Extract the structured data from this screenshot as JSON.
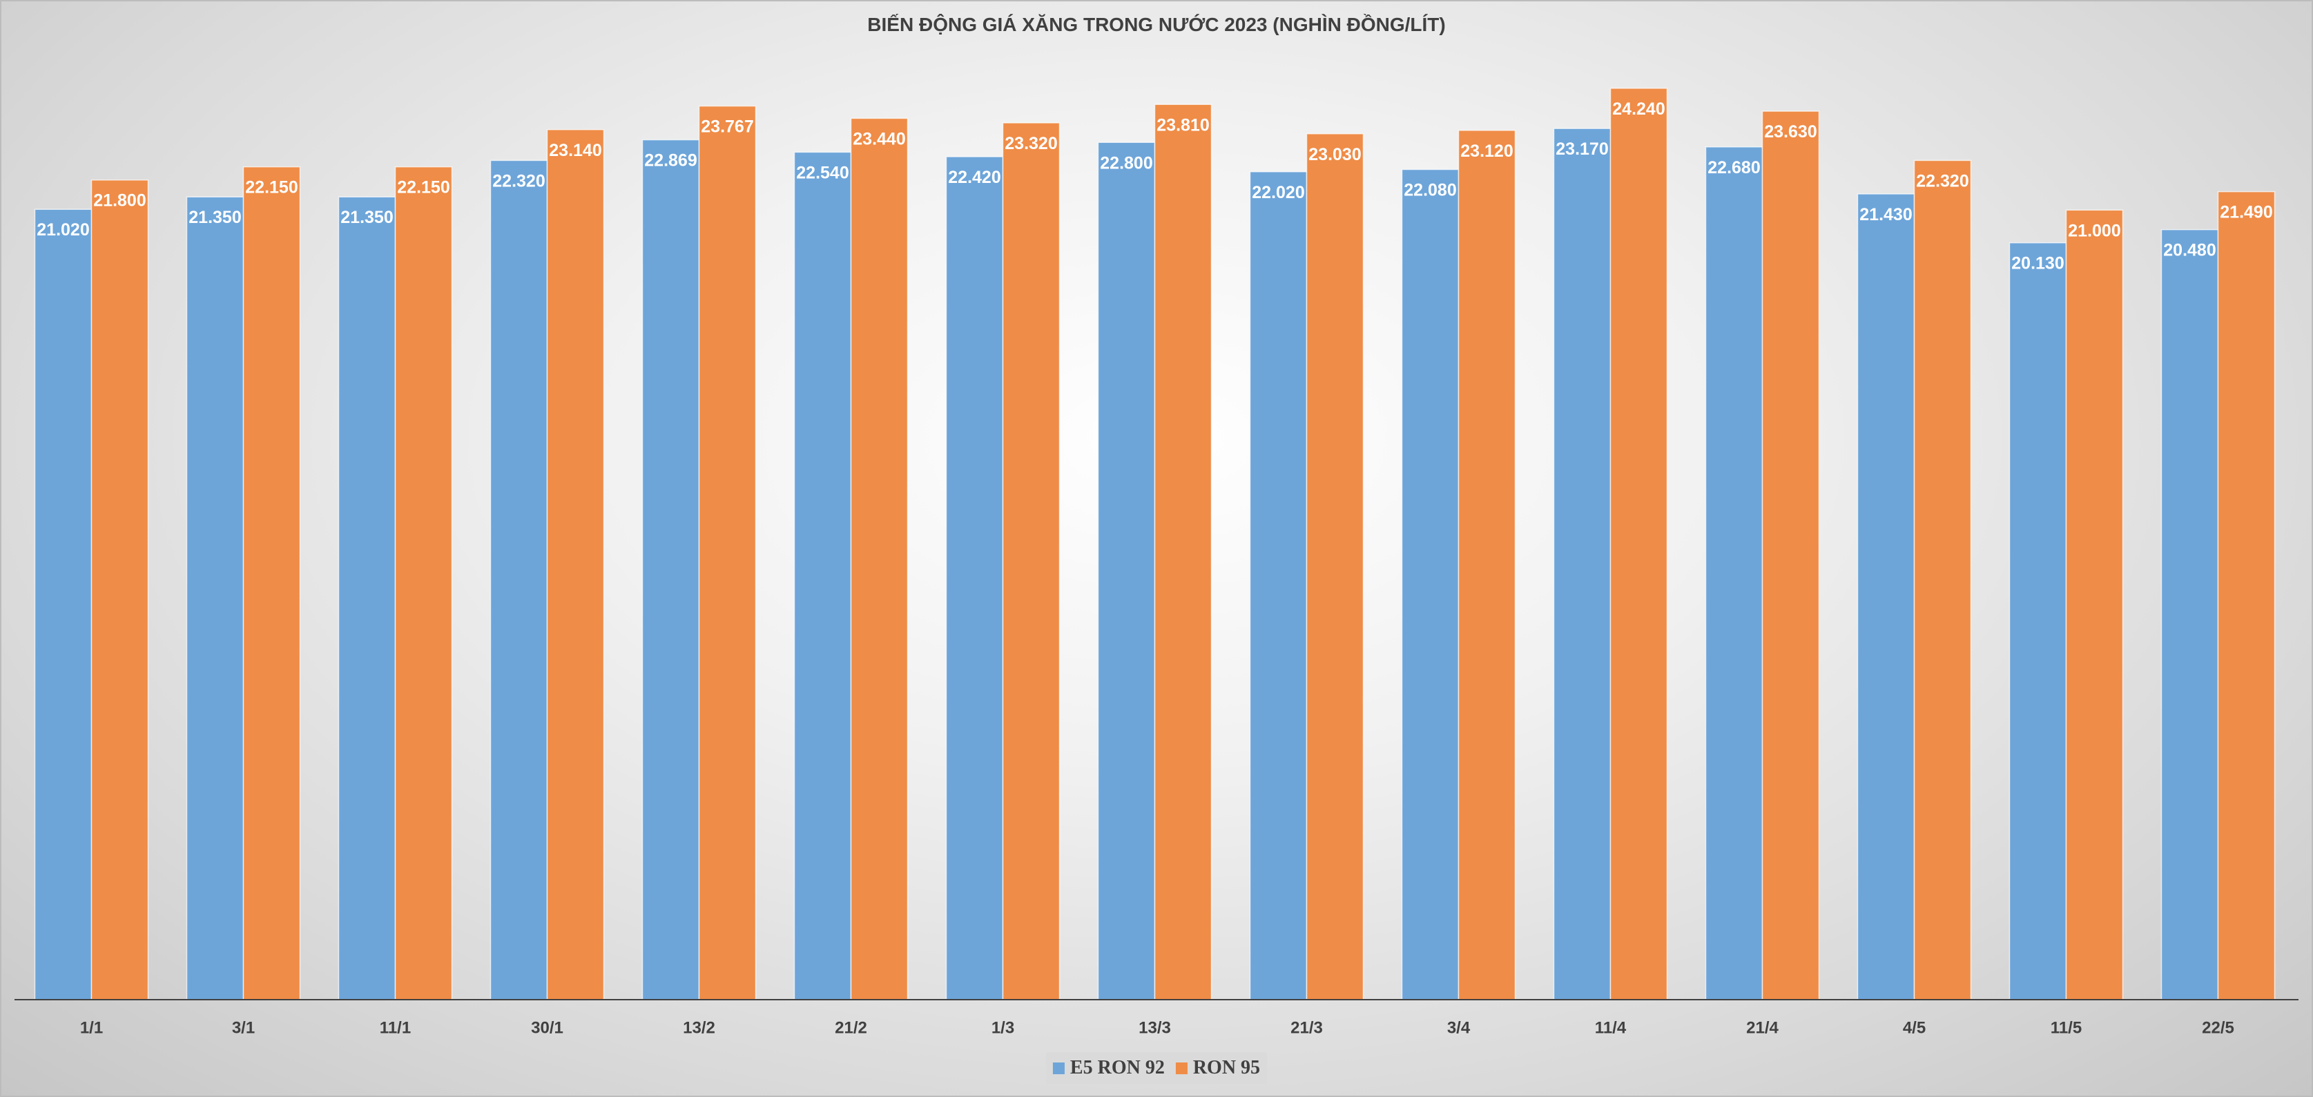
{
  "chart_data": {
    "type": "bar",
    "title": "BIẾN ĐỘNG GIÁ XĂNG TRONG NƯỚC 2023 (NGHÌN ĐỒNG/LÍT)",
    "categories": [
      "1/1",
      "3/1",
      "11/1",
      "30/1",
      "13/2",
      "21/2",
      "1/3",
      "13/3",
      "21/3",
      "3/4",
      "11/4",
      "21/4",
      "4/5",
      "11/5",
      "22/5"
    ],
    "series": [
      {
        "name": "E5 RON 92",
        "color": "#6da5d9",
        "values": [
          21.02,
          21.35,
          21.35,
          22.32,
          22.869,
          22.54,
          22.42,
          22.8,
          22.02,
          22.08,
          23.17,
          22.68,
          21.43,
          20.13,
          20.48
        ],
        "labels": [
          "21.020",
          "21.350",
          "21.350",
          "22.320",
          "22.869",
          "22.540",
          "22.420",
          "22.800",
          "22.020",
          "22.080",
          "23.170",
          "22.680",
          "21.430",
          "20.130",
          "20.480"
        ]
      },
      {
        "name": "RON 95",
        "color": "#ef8c47",
        "values": [
          21.8,
          22.15,
          22.15,
          23.14,
          23.767,
          23.44,
          23.32,
          23.81,
          23.03,
          23.12,
          24.24,
          23.63,
          22.32,
          21.0,
          21.49
        ],
        "labels": [
          "21.800",
          "22.150",
          "22.150",
          "23.140",
          "23.767",
          "23.440",
          "23.320",
          "23.810",
          "23.030",
          "23.120",
          "24.240",
          "23.630",
          "22.320",
          "21.000",
          "21.490"
        ]
      }
    ],
    "ylim": [
      0,
      26
    ],
    "grid": false,
    "show_y_axis": false,
    "legend_position": "bottom",
    "data_label_color": "#ffffff",
    "text_color": "#404040"
  }
}
